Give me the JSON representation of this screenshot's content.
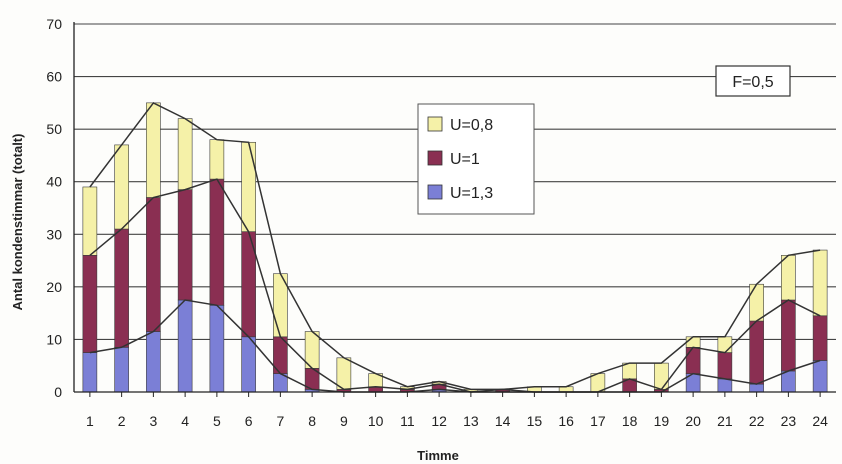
{
  "chart_data": {
    "type": "bar",
    "stacked": true,
    "xlabel": "Timme",
    "ylabel": "Antal kondenstimmar (totalt)",
    "ylim": [
      0,
      70
    ],
    "yticks": [
      0,
      10,
      20,
      30,
      40,
      50,
      60,
      70
    ],
    "grid": true,
    "legend_position": "center",
    "annotation": "F=0,5",
    "categories": [
      "1",
      "2",
      "3",
      "4",
      "5",
      "6",
      "7",
      "8",
      "9",
      "10",
      "11",
      "12",
      "13",
      "14",
      "15",
      "16",
      "17",
      "18",
      "19",
      "20",
      "21",
      "22",
      "23",
      "24"
    ],
    "series": [
      {
        "name": "U=1,3",
        "color": "#7b7fd6",
        "values": [
          7.5,
          8.5,
          11.5,
          17.5,
          16.5,
          10.5,
          3.5,
          0.5,
          0,
          0,
          0,
          0.5,
          0,
          0,
          0,
          0,
          0,
          0,
          0,
          3.5,
          2.5,
          1.5,
          4,
          6
        ]
      },
      {
        "name": "U=1",
        "color": "#8a2f52",
        "values": [
          18.5,
          22.5,
          25.5,
          21,
          24,
          20,
          7,
          4,
          0.5,
          1,
          0.5,
          1,
          0,
          0.5,
          0,
          0,
          0,
          2.5,
          0.5,
          5,
          5,
          12,
          13.5,
          8.5
        ]
      },
      {
        "name": "U=0,8",
        "color": "#f5f1a8",
        "values": [
          13,
          16,
          18,
          13.5,
          7.5,
          17,
          12,
          7,
          6,
          2.5,
          0.5,
          0.5,
          0.5,
          0,
          1,
          1,
          3.5,
          3,
          5,
          2,
          3,
          7,
          8.5,
          12.5
        ]
      }
    ]
  }
}
